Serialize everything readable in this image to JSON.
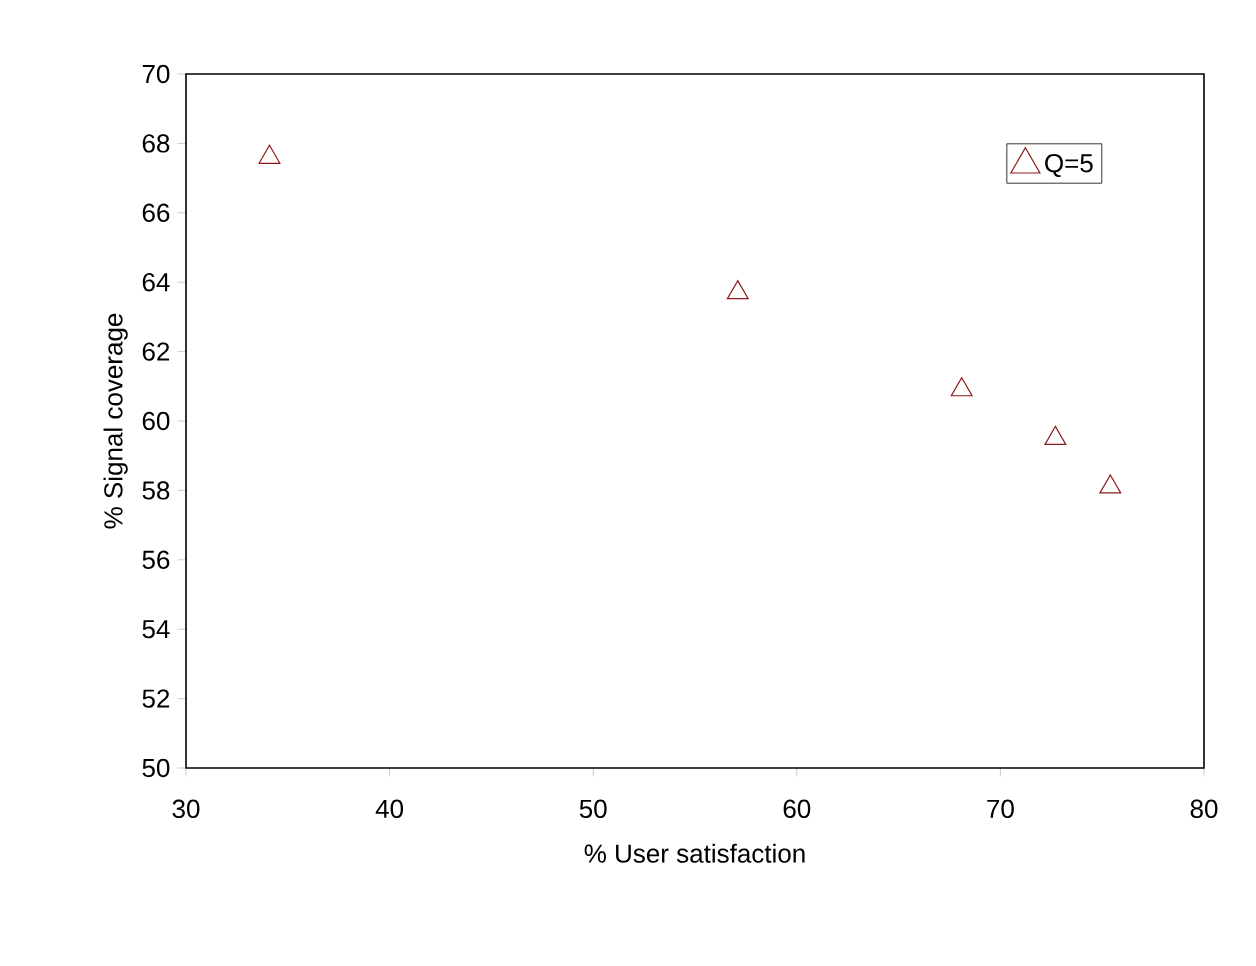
{
  "chart_data": {
    "type": "scatter",
    "xlabel": "% User satisfaction",
    "ylabel": "% Signal coverage",
    "x": [
      34.1,
      57.1,
      68.1,
      72.7,
      75.4
    ],
    "series": [
      {
        "name": "Q=5",
        "color": "#8b1a1a",
        "values": [
          67.6,
          63.7,
          60.9,
          59.5,
          58.1
        ]
      }
    ],
    "xlim": [
      30,
      80
    ],
    "xticks": [
      30,
      40,
      50,
      60,
      70,
      80
    ],
    "ylim": [
      50,
      70
    ],
    "yticks": [
      50,
      52,
      54,
      56,
      58,
      60,
      62,
      64,
      66,
      68,
      70
    ],
    "marker": "triangle",
    "legend": "top right",
    "grid": false
  }
}
